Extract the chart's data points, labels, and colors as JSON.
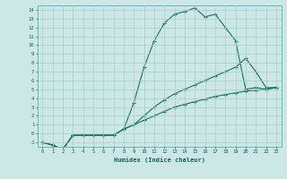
{
  "xlabel": "Humidex (Indice chaleur)",
  "background_color": "#cce8e6",
  "grid_color": "#aacccc",
  "line_color": "#1a7060",
  "x_values": [
    0,
    1,
    2,
    3,
    4,
    5,
    6,
    7,
    8,
    9,
    10,
    11,
    12,
    13,
    14,
    15,
    16,
    17,
    18,
    19,
    20,
    21,
    22,
    23
  ],
  "curve1": [
    -1.0,
    -1.3,
    -1.8,
    -0.2,
    -0.2,
    -0.2,
    -0.2,
    -0.2,
    0.5,
    1.0,
    1.5,
    2.0,
    2.5,
    3.0,
    3.3,
    3.6,
    3.9,
    4.2,
    4.4,
    4.6,
    4.8,
    4.9,
    5.0,
    5.2
  ],
  "curve2": [
    -1.0,
    -1.3,
    -1.8,
    -0.2,
    -0.2,
    -0.2,
    -0.2,
    -0.2,
    0.5,
    3.5,
    7.5,
    10.5,
    12.5,
    13.5,
    13.8,
    14.2,
    13.2,
    13.5,
    12.0,
    10.5,
    5.0,
    5.2,
    5.0,
    5.2
  ],
  "curve3": [
    -1.0,
    -1.3,
    -1.8,
    -0.2,
    -0.2,
    -0.2,
    -0.2,
    -0.2,
    0.5,
    1.0,
    2.0,
    3.0,
    3.8,
    4.5,
    5.0,
    5.5,
    6.0,
    6.5,
    7.0,
    7.5,
    8.5,
    7.0,
    5.2,
    5.2
  ],
  "xlim": [
    -0.5,
    23.5
  ],
  "ylim": [
    -1.5,
    14.5
  ],
  "yticks": [
    -1,
    0,
    1,
    2,
    3,
    4,
    5,
    6,
    7,
    8,
    9,
    10,
    11,
    12,
    13,
    14
  ],
  "xticks": [
    0,
    1,
    2,
    3,
    4,
    5,
    6,
    7,
    8,
    9,
    10,
    11,
    12,
    13,
    14,
    15,
    16,
    17,
    18,
    19,
    20,
    21,
    22,
    23
  ]
}
